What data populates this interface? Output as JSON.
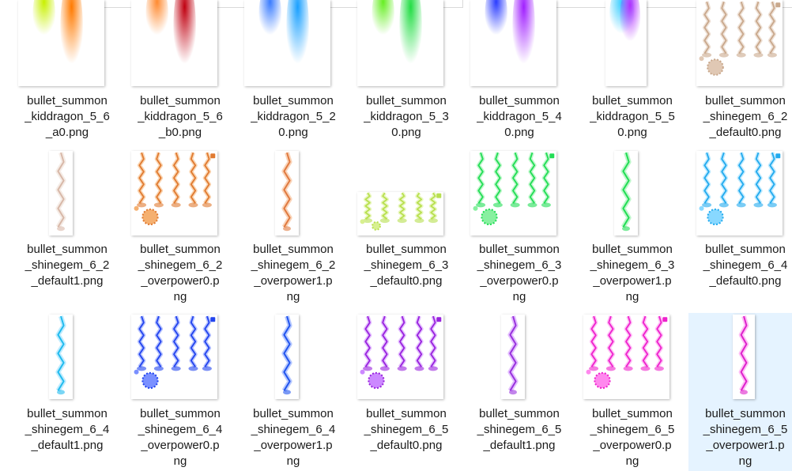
{
  "files": [
    {
      "name": "bullet_summon_kiddragon_5_6_a0.png",
      "lines": [
        "bullet_summon",
        "_kiddragon_5_6",
        "_a0.png"
      ],
      "colors": [
        "#c8f000",
        "#ff7a00"
      ]
    },
    {
      "name": "bullet_summon_kiddragon_5_6_b0.png",
      "lines": [
        "bullet_summon",
        "_kiddragon_5_6",
        "_b0.png"
      ],
      "colors": [
        "#ff8a30",
        "#c00010"
      ]
    },
    {
      "name": "bullet_summon_kiddragon_5_20.png",
      "lines": [
        "bullet_summon",
        "_kiddragon_5_2",
        "0.png"
      ],
      "colors": [
        "#3a7cff",
        "#1aa0ff"
      ]
    },
    {
      "name": "bullet_summon_kiddragon_5_30.png",
      "lines": [
        "bullet_summon",
        "_kiddragon_5_3",
        "0.png"
      ],
      "colors": [
        "#66ee22",
        "#22dd44"
      ]
    },
    {
      "name": "bullet_summon_kiddragon_5_40.png",
      "lines": [
        "bullet_summon",
        "_kiddragon_5_4",
        "0.png"
      ],
      "colors": [
        "#2a3cff",
        "#a020ff"
      ]
    },
    {
      "name": "bullet_summon_kiddragon_5_50.png",
      "lines": [
        "bullet_summon",
        "_kiddragon_5_5",
        "0.png"
      ],
      "colors": [
        "#33ccff",
        "#b030ff"
      ]
    },
    {
      "name": "bullet_summon_shinegem_6_2_default0.png",
      "lines": [
        "bullet_summon",
        "_shinegem_6_2",
        "_default0.png"
      ],
      "colors": [
        "#c9a88c",
        "#e0c8b4"
      ]
    },
    {
      "name": "bullet_summon_shinegem_6_2_default1.png",
      "lines": [
        "bullet_summon",
        "_shinegem_6_2",
        "_default1.png"
      ],
      "colors": [
        "#d8b8a8",
        "#ecdcd2"
      ]
    },
    {
      "name": "bullet_summon_shinegem_6_2_overpower0.png",
      "lines": [
        "bullet_summon",
        "_shinegem_6_2",
        "_overpower0.p",
        "ng"
      ],
      "colors": [
        "#e07a30",
        "#f5b070"
      ]
    },
    {
      "name": "bullet_summon_shinegem_6_2_overpower1.png",
      "lines": [
        "bullet_summon",
        "_shinegem_6_2",
        "_overpower1.p",
        "ng"
      ],
      "colors": [
        "#e07a40",
        "#f5b080"
      ]
    },
    {
      "name": "bullet_summon_shinegem_6_3_default0.png",
      "lines": [
        "bullet_summon",
        "_shinegem_6_3",
        "_default0.png"
      ],
      "colors": [
        "#b8e050",
        "#d8f090"
      ]
    },
    {
      "name": "bullet_summon_shinegem_6_3_overpower0.png",
      "lines": [
        "bullet_summon",
        "_shinegem_6_3",
        "_overpower0.p",
        "ng"
      ],
      "colors": [
        "#22dd55",
        "#88f0a0"
      ]
    },
    {
      "name": "bullet_summon_shinegem_6_3_overpower1.png",
      "lines": [
        "bullet_summon",
        "_shinegem_6_3",
        "_overpower1.p",
        "ng"
      ],
      "colors": [
        "#22dd55",
        "#88f0a0"
      ]
    },
    {
      "name": "bullet_summon_shinegem_6_4_default0.png",
      "lines": [
        "bullet_summon",
        "_shinegem_6_4",
        "_default0.png"
      ],
      "colors": [
        "#22aaee",
        "#88d8ff"
      ]
    },
    {
      "name": "bullet_summon_shinegem_6_4_default1.png",
      "lines": [
        "bullet_summon",
        "_shinegem_6_4",
        "_default1.png"
      ],
      "colors": [
        "#22bbee",
        "#88ddff"
      ]
    },
    {
      "name": "bullet_summon_shinegem_6_4_overpower0.png",
      "lines": [
        "bullet_summon",
        "_shinegem_6_4",
        "_overpower0.p",
        "ng"
      ],
      "colors": [
        "#2244ee",
        "#7a90ff"
      ]
    },
    {
      "name": "bullet_summon_shinegem_6_4_overpower1.png",
      "lines": [
        "bullet_summon",
        "_shinegem_6_4",
        "_overpower1.p",
        "ng"
      ],
      "colors": [
        "#2255ee",
        "#7a9aff"
      ]
    },
    {
      "name": "bullet_summon_shinegem_6_5_default0.png",
      "lines": [
        "bullet_summon",
        "_shinegem_6_5",
        "_default0.png"
      ],
      "colors": [
        "#9922dd",
        "#cc88ff"
      ]
    },
    {
      "name": "bullet_summon_shinegem_6_5_default1.png",
      "lines": [
        "bullet_summon",
        "_shinegem_6_5",
        "_default1.png"
      ],
      "colors": [
        "#9933dd",
        "#cc88ff"
      ]
    },
    {
      "name": "bullet_summon_shinegem_6_5_overpower0.png",
      "lines": [
        "bullet_summon",
        "_shinegem_6_5",
        "_overpower0.p",
        "ng"
      ],
      "colors": [
        "#ee22cc",
        "#ff88ee"
      ]
    },
    {
      "name": "bullet_summon_shinegem_6_5_overpower1.png",
      "lines": [
        "bullet_summon",
        "_shinegem_6_5",
        "_overpower1.p",
        "ng"
      ],
      "colors": [
        "#dd22cc",
        "#ff88ee"
      ],
      "selected": true
    }
  ],
  "colors": {
    "selection": "#e5f3ff",
    "label_text": "#1a1a1a"
  }
}
